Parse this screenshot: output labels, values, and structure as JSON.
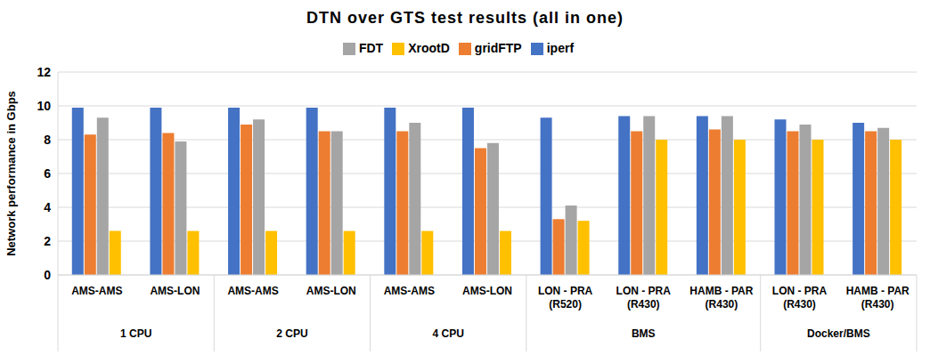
{
  "chart_data": {
    "type": "bar",
    "title": "DTN over GTS test results (all in one)",
    "y_label": "Network performance in Gbps",
    "categories": [
      "AMS-AMS",
      "AMS-LON",
      "AMS-AMS",
      "AMS-LON",
      "AMS-AMS",
      "AMS-LON",
      "LON - PRA (R520)",
      "LON - PRA (R430)",
      "HAMB - PAR (R430)",
      "LON - PRA (R430)",
      "HAMB - PAR (R430)"
    ],
    "category_groups": [
      "1 CPU",
      "1 CPU",
      "2 CPU",
      "2 CPU",
      "4 CPU",
      "4 CPU",
      "BMS",
      "BMS",
      "BMS",
      "Docker/BMS",
      "Docker/BMS"
    ],
    "series": [
      {
        "name": "iperf",
        "color": "#4472c4",
        "values": [
          9.9,
          9.9,
          9.9,
          9.9,
          9.9,
          9.9,
          9.3,
          9.4,
          9.4,
          9.2,
          9.0
        ]
      },
      {
        "name": "gridFTP",
        "color": "#ed7d31",
        "values": [
          8.3,
          8.4,
          8.9,
          8.5,
          8.5,
          7.5,
          3.3,
          8.5,
          8.6,
          8.5,
          8.5
        ]
      },
      {
        "name": "FDT",
        "color": "#a5a5a5",
        "values": [
          9.3,
          7.9,
          9.2,
          8.5,
          9.0,
          7.8,
          4.1,
          9.4,
          9.4,
          8.9,
          8.7
        ]
      },
      {
        "name": "XrootD",
        "color": "#ffc000",
        "values": [
          2.6,
          2.6,
          2.6,
          2.6,
          2.6,
          2.6,
          3.2,
          8.0,
          8.0,
          8.0,
          8.0
        ]
      }
    ],
    "ylim": [
      0,
      12
    ],
    "yticks": [
      0,
      2,
      4,
      6,
      8,
      10,
      12
    ],
    "grid": true,
    "legend": "top"
  }
}
